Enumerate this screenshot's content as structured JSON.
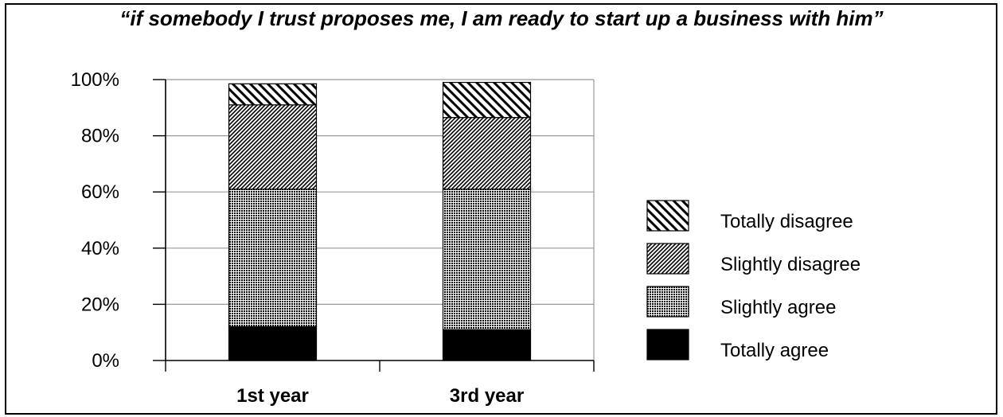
{
  "chart_data": {
    "type": "bar",
    "stacked": true,
    "title": "“if somebody I trust proposes me, I am ready to start up a business with him”",
    "categories": [
      "1st year",
      "3rd year"
    ],
    "yticks": [
      "0%",
      "20%",
      "40%",
      "60%",
      "80%",
      "100%"
    ],
    "ylim": [
      0,
      100
    ],
    "grid": true,
    "legend_position": "right",
    "series": [
      {
        "name": "Totally agree",
        "values": [
          12,
          11
        ],
        "pattern": "solid-black"
      },
      {
        "name": "Slightly agree",
        "values": [
          49,
          50
        ],
        "pattern": "dense-dots"
      },
      {
        "name": "Slightly disagree",
        "values": [
          30,
          25.5
        ],
        "pattern": "fine-diagonal"
      },
      {
        "name": "Totally disagree",
        "values": [
          7.5,
          12.5
        ],
        "pattern": "wide-diagonal"
      }
    ]
  }
}
